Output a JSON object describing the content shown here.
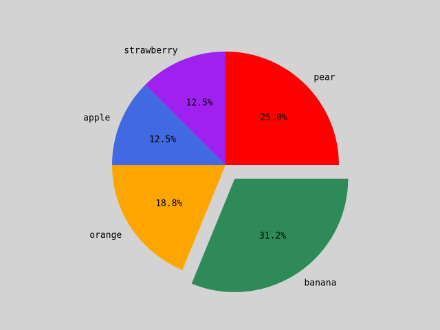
{
  "chart_data": {
    "type": "pie",
    "categories": [
      "pear",
      "strawberry",
      "apple",
      "orange",
      "banana"
    ],
    "values": [
      25.0,
      12.5,
      12.5,
      18.8,
      31.2
    ],
    "percent_labels": [
      "25.0%",
      "12.5%",
      "12.5%",
      "18.8%",
      "31.2%"
    ],
    "colors": [
      "#ff0000",
      "#a020f0",
      "#4169e1",
      "#ffa500",
      "#2e8b57"
    ],
    "exploded": [
      "banana"
    ],
    "title": "",
    "legend": "none"
  }
}
